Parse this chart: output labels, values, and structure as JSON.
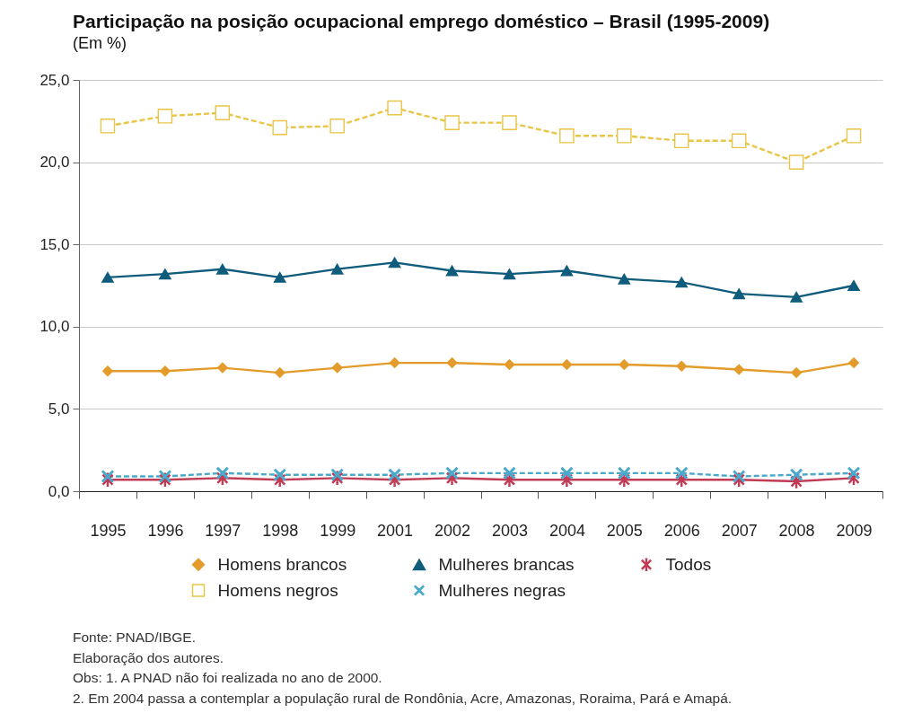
{
  "chart_data": {
    "type": "line",
    "title": "Participação na posição ocupacional emprego doméstico – Brasil (1995-2009)",
    "subtitle": "(Em %)",
    "categories": [
      "1995",
      "1996",
      "1997",
      "1998",
      "1999",
      "2001",
      "2002",
      "2003",
      "2004",
      "2005",
      "2006",
      "2007",
      "2008",
      "2009"
    ],
    "series": [
      {
        "name": "Homens brancos",
        "color": "#e39b2b",
        "marker": "diamond",
        "line_style": "solid",
        "values": [
          7.3,
          7.3,
          7.5,
          7.2,
          7.5,
          7.8,
          7.8,
          7.7,
          7.7,
          7.7,
          7.6,
          7.4,
          7.2,
          7.8
        ]
      },
      {
        "name": "Mulheres brancas",
        "color": "#0f5c7c",
        "marker": "triangle",
        "line_style": "solid",
        "values": [
          13.0,
          13.2,
          13.5,
          13.0,
          13.5,
          13.9,
          13.4,
          13.2,
          13.4,
          12.9,
          12.7,
          12.0,
          11.8,
          12.5
        ]
      },
      {
        "name": "Todos",
        "color": "#c23b55",
        "marker": "star",
        "line_style": "solid",
        "values": [
          0.7,
          0.7,
          0.8,
          0.7,
          0.8,
          0.7,
          0.8,
          0.7,
          0.7,
          0.7,
          0.7,
          0.7,
          0.6,
          0.8
        ]
      },
      {
        "name": "Homens negros",
        "color": "#e8c547",
        "marker": "square",
        "line_style": "dashed",
        "values": [
          22.2,
          22.8,
          23.0,
          22.1,
          22.2,
          23.3,
          22.4,
          22.4,
          21.6,
          21.6,
          21.3,
          21.3,
          20.0,
          21.6
        ]
      },
      {
        "name": "Mulheres negras",
        "color": "#4ba9cc",
        "marker": "cross",
        "line_style": "dashed",
        "values": [
          0.9,
          0.9,
          1.1,
          1.0,
          1.0,
          1.0,
          1.1,
          1.1,
          1.1,
          1.1,
          1.1,
          0.9,
          1.0,
          1.1
        ]
      }
    ],
    "ylim": [
      0,
      25
    ],
    "yticks": [
      {
        "value": 0,
        "label": "0,0"
      },
      {
        "value": 5,
        "label": "5,0"
      },
      {
        "value": 10,
        "label": "10,0"
      },
      {
        "value": 15,
        "label": "15,0"
      },
      {
        "value": 20,
        "label": "20,0"
      },
      {
        "value": 25,
        "label": "25,0"
      }
    ],
    "grid": "y",
    "legend": "bottom",
    "annotations": [
      "Fonte: PNAD/IBGE.",
      "Elaboração dos autores.",
      "Obs: 1. A PNAD não foi realizada no ano de 2000.",
      "2. Em 2004 passa a contemplar a população rural de Rondônia, Acre, Amazonas, Roraima, Pará e Amapá."
    ]
  }
}
